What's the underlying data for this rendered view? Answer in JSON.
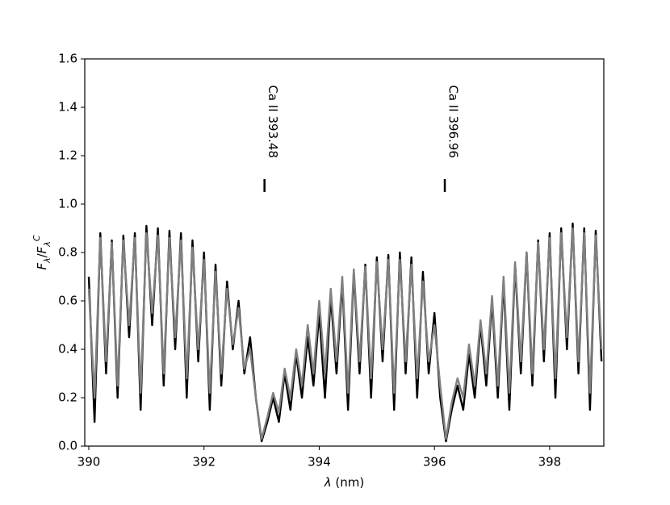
{
  "chart_data": {
    "type": "line",
    "xlabel": [
      {
        "text": "λ",
        "style": "italic"
      },
      {
        "text": " (nm)"
      }
    ],
    "ylabel": [
      {
        "text": "F",
        "style": "italic"
      },
      {
        "text": "λ",
        "style": "italic",
        "shift": "sub"
      },
      {
        "text": "/"
      },
      {
        "text": "F",
        "style": "italic"
      },
      {
        "text": "λ",
        "style": "italic",
        "shift": "sub"
      },
      {
        "text": "C",
        "style": "italic",
        "shift": "sup"
      }
    ],
    "x": [
      390.0,
      390.1,
      390.2,
      390.3,
      390.4,
      390.5,
      390.6,
      390.7,
      390.8,
      390.9,
      391.0,
      391.1,
      391.2,
      391.3,
      391.4,
      391.5,
      391.6,
      391.7,
      391.8,
      391.9,
      392.0,
      392.1,
      392.2,
      392.3,
      392.4,
      392.5,
      392.6,
      392.7,
      392.8,
      392.9,
      393.0,
      393.1,
      393.2,
      393.3,
      393.4,
      393.5,
      393.6,
      393.7,
      393.8,
      393.9,
      394.0,
      394.1,
      394.2,
      394.3,
      394.4,
      394.5,
      394.6,
      394.7,
      394.8,
      394.9,
      395.0,
      395.1,
      395.2,
      395.3,
      395.4,
      395.5,
      395.6,
      395.7,
      395.8,
      395.9,
      396.0,
      396.1,
      396.2,
      396.3,
      396.4,
      396.5,
      396.6,
      396.7,
      396.8,
      396.9,
      397.0,
      397.1,
      397.2,
      397.3,
      397.4,
      397.5,
      397.6,
      397.7,
      397.8,
      397.9,
      398.0,
      398.1,
      398.2,
      398.3,
      398.4,
      398.5,
      398.6,
      398.7,
      398.8,
      398.9
    ],
    "series": [
      {
        "color": "#000000",
        "values": [
          0.7,
          0.1,
          0.88,
          0.3,
          0.85,
          0.2,
          0.87,
          0.45,
          0.88,
          0.15,
          0.91,
          0.5,
          0.9,
          0.25,
          0.89,
          0.4,
          0.88,
          0.2,
          0.85,
          0.35,
          0.8,
          0.15,
          0.75,
          0.25,
          0.68,
          0.4,
          0.6,
          0.3,
          0.45,
          0.2,
          0.02,
          0.1,
          0.2,
          0.1,
          0.3,
          0.15,
          0.38,
          0.2,
          0.45,
          0.25,
          0.55,
          0.2,
          0.62,
          0.3,
          0.68,
          0.15,
          0.72,
          0.3,
          0.75,
          0.2,
          0.78,
          0.35,
          0.79,
          0.15,
          0.8,
          0.3,
          0.78,
          0.2,
          0.72,
          0.3,
          0.55,
          0.2,
          0.02,
          0.15,
          0.25,
          0.15,
          0.38,
          0.2,
          0.5,
          0.25,
          0.6,
          0.2,
          0.68,
          0.15,
          0.75,
          0.3,
          0.8,
          0.25,
          0.85,
          0.35,
          0.88,
          0.2,
          0.9,
          0.4,
          0.92,
          0.3,
          0.9,
          0.15,
          0.89,
          0.35
        ]
      },
      {
        "color": "#808080",
        "values": [
          0.65,
          0.2,
          0.86,
          0.35,
          0.84,
          0.25,
          0.85,
          0.5,
          0.86,
          0.22,
          0.88,
          0.55,
          0.87,
          0.3,
          0.86,
          0.45,
          0.85,
          0.28,
          0.82,
          0.4,
          0.77,
          0.22,
          0.72,
          0.3,
          0.65,
          0.42,
          0.57,
          0.32,
          0.4,
          0.2,
          0.03,
          0.12,
          0.22,
          0.14,
          0.32,
          0.2,
          0.4,
          0.25,
          0.5,
          0.3,
          0.6,
          0.3,
          0.65,
          0.35,
          0.7,
          0.22,
          0.73,
          0.35,
          0.74,
          0.28,
          0.76,
          0.4,
          0.77,
          0.22,
          0.77,
          0.35,
          0.75,
          0.28,
          0.68,
          0.35,
          0.5,
          0.25,
          0.03,
          0.18,
          0.28,
          0.2,
          0.42,
          0.25,
          0.52,
          0.3,
          0.62,
          0.25,
          0.7,
          0.22,
          0.76,
          0.35,
          0.8,
          0.3,
          0.84,
          0.4,
          0.86,
          0.28,
          0.88,
          0.45,
          0.9,
          0.35,
          0.88,
          0.22,
          0.87,
          0.4
        ]
      }
    ],
    "xlim": [
      389.93,
      398.94
    ],
    "ylim": [
      0,
      1.6
    ],
    "xticks": [
      390,
      392,
      394,
      396,
      398
    ],
    "yticks": [
      {
        "value": 0,
        "label": "0.0"
      },
      {
        "value": 0.2,
        "label": "0.2"
      },
      {
        "value": 0.4,
        "label": "0.4"
      },
      {
        "value": 0.6,
        "label": "0.6"
      },
      {
        "value": 0.8,
        "label": "0.8"
      },
      {
        "value": 1.0,
        "label": "1.0"
      },
      {
        "value": 1.2,
        "label": "1.2"
      },
      {
        "value": 1.4,
        "label": "1.4"
      },
      {
        "value": 1.6,
        "label": "1.6"
      }
    ],
    "annotations": [
      {
        "text": "Ca II 393.48",
        "x": 393.05,
        "y": 1.05
      },
      {
        "text": "Ca II 396.96",
        "x": 396.18,
        "y": 1.05
      }
    ]
  }
}
